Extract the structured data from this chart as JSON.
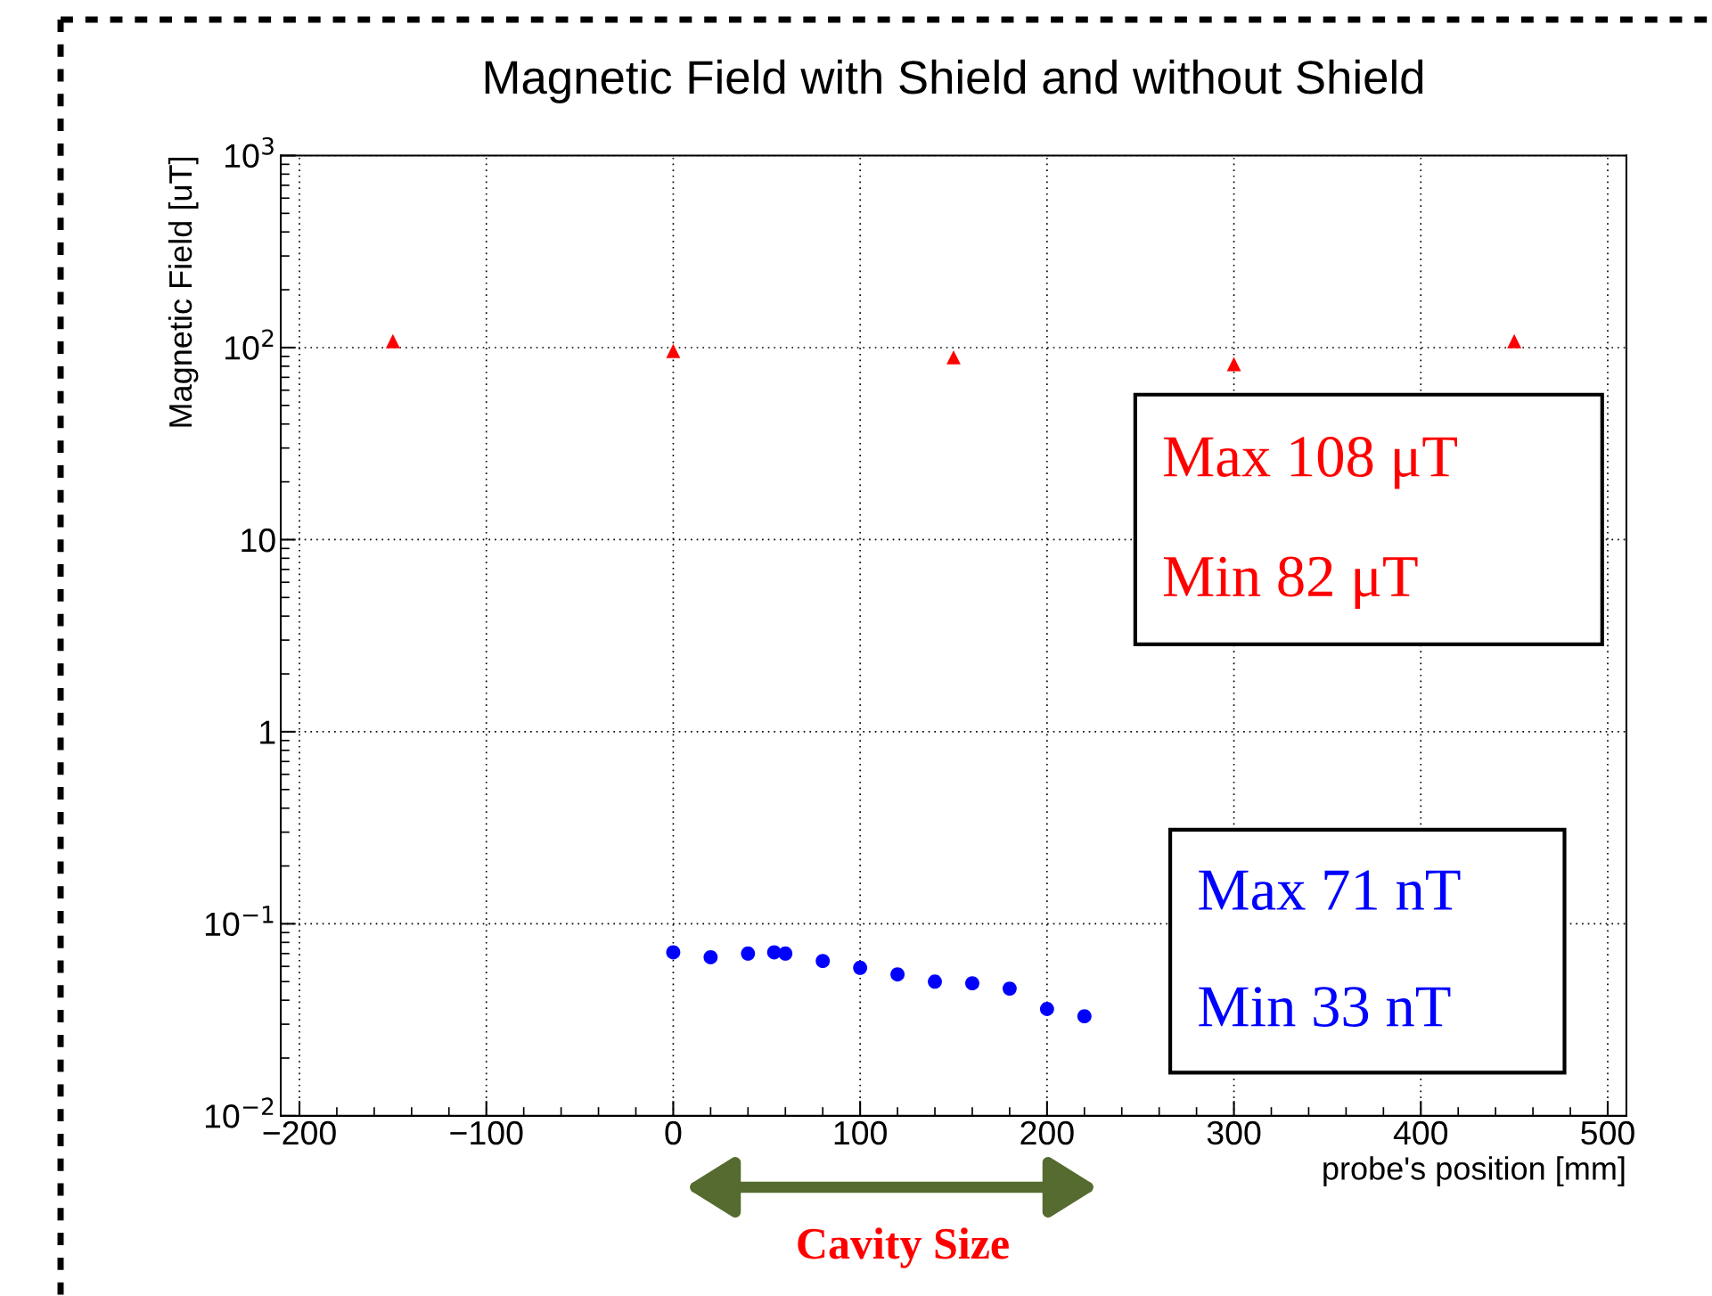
{
  "chart_data": {
    "type": "scatter",
    "title": "Magnetic Field with Shield and without Shield",
    "xlabel": "probe's position [mm]",
    "ylabel": "Magnetic Field [uT]",
    "series": [
      {
        "color": "#ff0000",
        "marker": "triangle",
        "x": [
          -150,
          0,
          150,
          300,
          450
        ],
        "values": [
          108,
          96,
          89,
          82,
          108
        ]
      },
      {
        "color": "#0000ff",
        "marker": "circle",
        "x": [
          0,
          20,
          40,
          54,
          60,
          80,
          100,
          120,
          140,
          160,
          180,
          200,
          220
        ],
        "values": [
          0.071,
          0.067,
          0.07,
          0.071,
          0.07,
          0.064,
          0.059,
          0.0545,
          0.05,
          0.049,
          0.046,
          0.036,
          0.033
        ]
      }
    ],
    "log": "y",
    "grid": true,
    "xlim": [
      -210,
      510
    ],
    "xticks": [
      {
        "value": -200,
        "label": "−200"
      },
      {
        "value": -100,
        "label": "−100"
      },
      0,
      100,
      200,
      300,
      400,
      500
    ],
    "ylim": [
      0.01,
      1000
    ],
    "yticks": [
      {
        "value": 0.01,
        "label": "10$^{−2}$"
      },
      {
        "value": 0.1,
        "label": "10$^{−1}$"
      },
      1,
      10,
      {
        "value": 100,
        "label": "10$^{2}$"
      },
      {
        "value": 1000,
        "label": "10$^{3}$"
      }
    ],
    "annotations": [
      "Max 108 μT",
      "Min 82 μT",
      "Max 71 nT",
      "Min 33 nT",
      "Cavity Size"
    ]
  }
}
